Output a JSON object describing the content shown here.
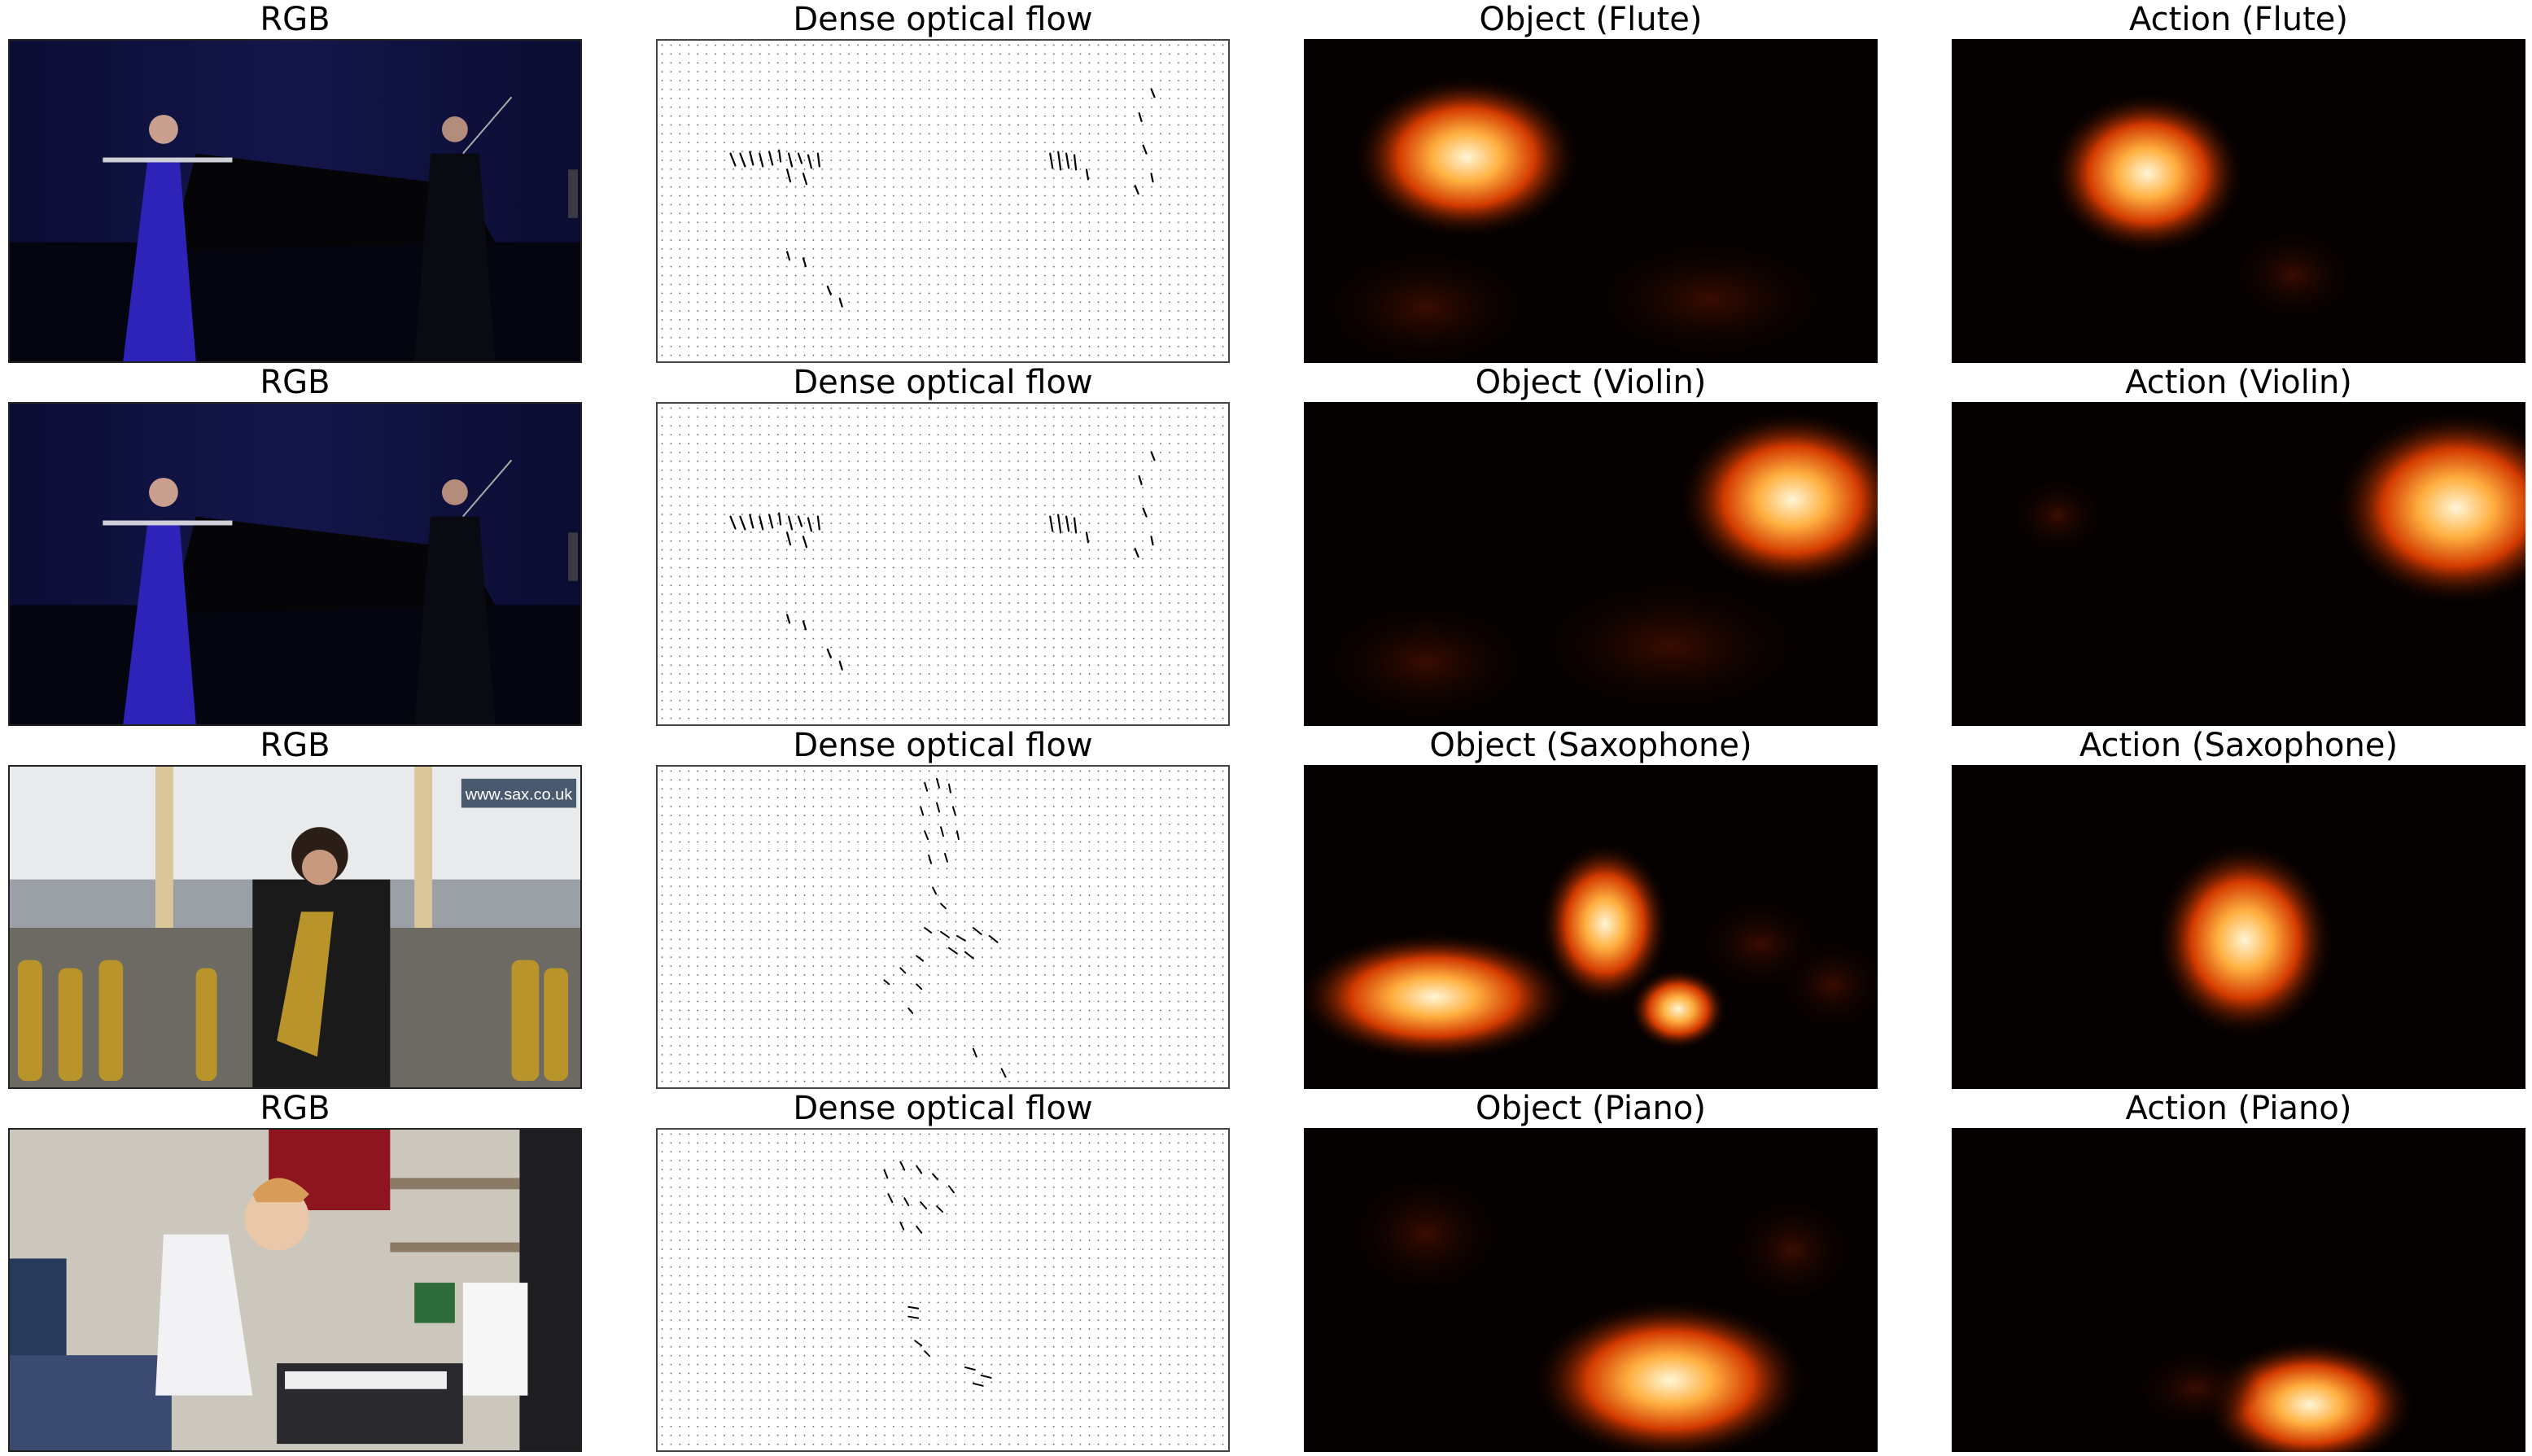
{
  "rows": [
    {
      "rgb_title": "RGB",
      "flow_title": "Dense optical flow",
      "object_title": "Object (Flute)",
      "action_title": "Action (Flute)",
      "scene": "concert-stage"
    },
    {
      "rgb_title": "RGB",
      "flow_title": "Dense optical flow",
      "object_title": "Object (Violin)",
      "action_title": "Action (Violin)",
      "scene": "concert-stage"
    },
    {
      "rgb_title": "RGB",
      "flow_title": "Dense optical flow",
      "object_title": "Object (Saxophone)",
      "action_title": "Action (Saxophone)",
      "scene": "saxophone-store",
      "watermark": "www.sax.co.uk"
    },
    {
      "rgb_title": "RGB",
      "flow_title": "Dense optical flow",
      "object_title": "Object (Piano)",
      "action_title": "Action (Piano)",
      "scene": "bedroom-keyboard"
    }
  ],
  "colors": {
    "heatmap_low": "#050100",
    "heatmap_mid": "#d23a00",
    "heatmap_high": "#fff6d8",
    "stage_blue": "#0d0f3a",
    "dress_blue": "#2d23b8"
  }
}
